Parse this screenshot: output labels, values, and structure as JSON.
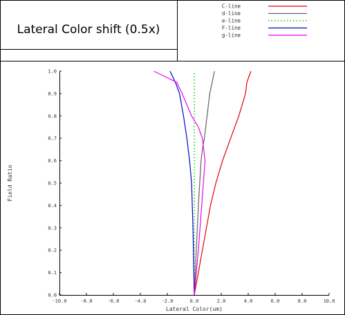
{
  "chart_data": {
    "type": "line",
    "title": "Lateral Color shift (0.5x)",
    "xlabel": "Lateral Color(um)",
    "ylabel": "Field Ratio",
    "xlim": [
      -10.0,
      10.0
    ],
    "ylim": [
      0.0,
      1.0
    ],
    "x_ticks": [
      "-10.0",
      "-8.0",
      "-6.0",
      "-4.0",
      "-2.0",
      "0.0",
      "2.0",
      "4.0",
      "6.0",
      "8.0",
      "10.0"
    ],
    "y_ticks": [
      "0.0",
      "0.1",
      "0.2",
      "0.3",
      "0.4",
      "0.5",
      "0.6",
      "0.7",
      "0.8",
      "0.9",
      "1.0"
    ],
    "grid": false,
    "legend_position": "top-right",
    "series": [
      {
        "name": "C-line",
        "color": "#dd0000",
        "dash": "solid",
        "points": [
          [
            0.0,
            0.0
          ],
          [
            0.3,
            0.1
          ],
          [
            0.6,
            0.2
          ],
          [
            0.9,
            0.3
          ],
          [
            1.2,
            0.4
          ],
          [
            1.6,
            0.5
          ],
          [
            2.1,
            0.6
          ],
          [
            2.7,
            0.7
          ],
          [
            3.3,
            0.8
          ],
          [
            3.8,
            0.9
          ],
          [
            3.9,
            0.95
          ],
          [
            4.2,
            1.0
          ]
        ]
      },
      {
        "name": "d-line",
        "color": "#606060",
        "dash": "solid",
        "points": [
          [
            0.0,
            0.0
          ],
          [
            0.15,
            0.2
          ],
          [
            0.3,
            0.4
          ],
          [
            0.5,
            0.6
          ],
          [
            0.6,
            0.65
          ],
          [
            0.75,
            0.7
          ],
          [
            0.95,
            0.8
          ],
          [
            1.15,
            0.9
          ],
          [
            1.5,
            1.0
          ]
        ]
      },
      {
        "name": "e-line",
        "color": "#00cc00",
        "dash": "dotted",
        "points": [
          [
            0.0,
            0.0
          ],
          [
            0.0,
            1.0
          ]
        ]
      },
      {
        "name": "F-line",
        "color": "#0000cc",
        "dash": "solid",
        "points": [
          [
            0.0,
            0.0
          ],
          [
            -0.1,
            0.3
          ],
          [
            -0.2,
            0.5
          ],
          [
            -0.35,
            0.6
          ],
          [
            -0.55,
            0.7
          ],
          [
            -0.8,
            0.8
          ],
          [
            -1.1,
            0.9
          ],
          [
            -1.4,
            0.95
          ],
          [
            -1.8,
            1.0
          ]
        ]
      },
      {
        "name": "g-line",
        "color": "#ee00ee",
        "dash": "solid",
        "points": [
          [
            0.0,
            0.0
          ],
          [
            0.3,
            0.2
          ],
          [
            0.55,
            0.4
          ],
          [
            0.8,
            0.6
          ],
          [
            0.6,
            0.7
          ],
          [
            0.3,
            0.75
          ],
          [
            -0.2,
            0.8
          ],
          [
            -0.9,
            0.9
          ],
          [
            -1.3,
            0.95
          ],
          [
            -3.0,
            1.0
          ]
        ]
      }
    ]
  }
}
